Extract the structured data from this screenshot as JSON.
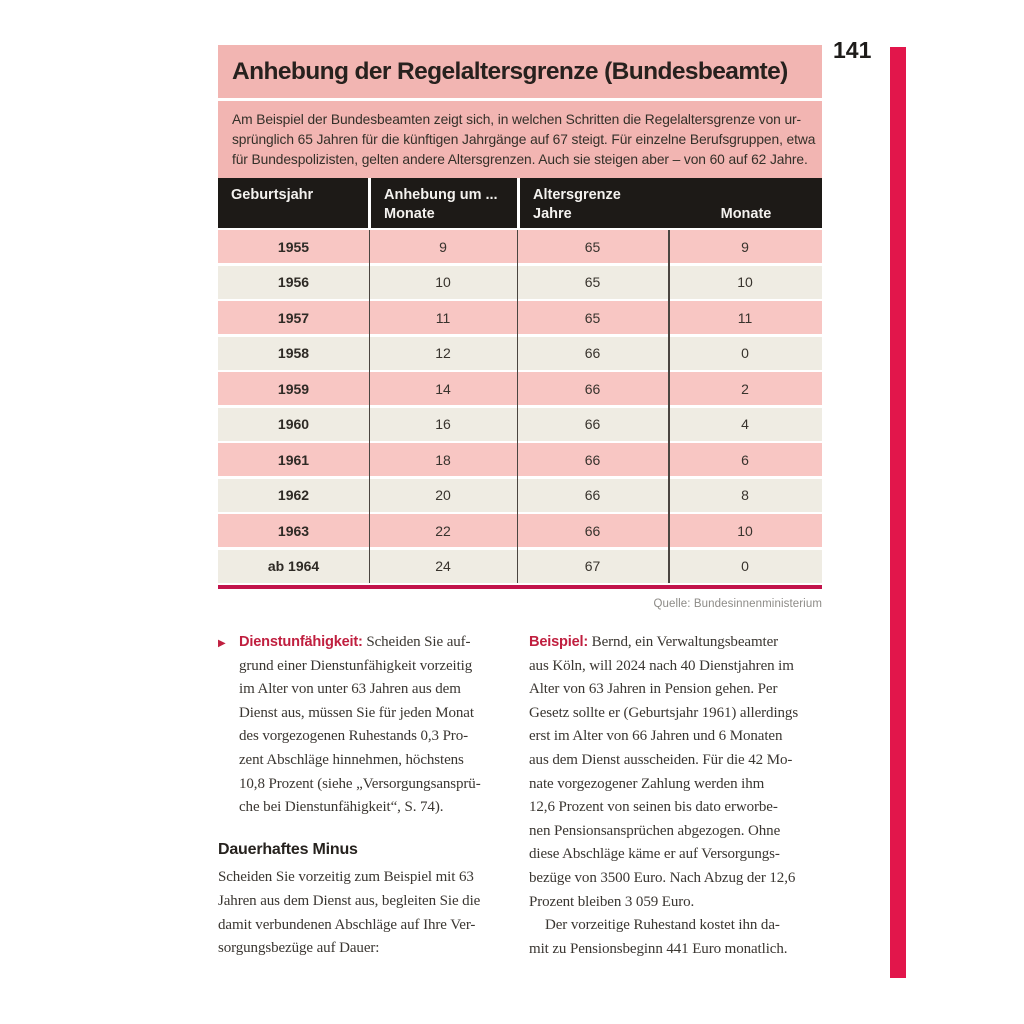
{
  "page_number": "141",
  "icons": {
    "bullet": "▶"
  },
  "colors": {
    "accent_crimson": "#e2164b",
    "box_pink": "#f2b5b2",
    "row_pink": "#f8c6c3",
    "row_beige": "#efece3",
    "header_black": "#1d1a17",
    "lead_red": "#c01f3f"
  },
  "infobox": {
    "title": "Anhebung der Regelaltersgrenze (Bundesbeamte)",
    "intro_lines": [
      "Am Beispiel der Bundesbeamten zeigt sich, in welchen Schritten die Regelaltersgrenze von ur-",
      "sprünglich 65 Jahren für die künftigen Jahrgänge auf 67 steigt. Für einzelne Berufsgruppen, etwa",
      "für Bundespolizisten, gelten andere Altersgrenzen. Auch sie steigen aber – von 60 auf 62 Jahre."
    ]
  },
  "table": {
    "headers": {
      "col1": "Geburtsjahr",
      "col2_line1": "Anhebung um ...",
      "col2_line2": "Monate",
      "col3_line1": "Altersgrenze",
      "col3_sub_jahre": "Jahre",
      "col3_sub_monate": "Monate"
    },
    "rows": [
      {
        "geburtsjahr": "1955",
        "anhebung": "9",
        "jahre": "65",
        "monate": "9"
      },
      {
        "geburtsjahr": "1956",
        "anhebung": "10",
        "jahre": "65",
        "monate": "10"
      },
      {
        "geburtsjahr": "1957",
        "anhebung": "11",
        "jahre": "65",
        "monate": "11"
      },
      {
        "geburtsjahr": "1958",
        "anhebung": "12",
        "jahre": "66",
        "monate": "0"
      },
      {
        "geburtsjahr": "1959",
        "anhebung": "14",
        "jahre": "66",
        "monate": "2"
      },
      {
        "geburtsjahr": "1960",
        "anhebung": "16",
        "jahre": "66",
        "monate": "4"
      },
      {
        "geburtsjahr": "1961",
        "anhebung": "18",
        "jahre": "66",
        "monate": "6"
      },
      {
        "geburtsjahr": "1962",
        "anhebung": "20",
        "jahre": "66",
        "monate": "8"
      },
      {
        "geburtsjahr": "1963",
        "anhebung": "22",
        "jahre": "66",
        "monate": "10"
      },
      {
        "geburtsjahr": "ab 1964",
        "anhebung": "24",
        "jahre": "67",
        "monate": "0"
      }
    ],
    "source": "Quelle: Bundesinnenministerium"
  },
  "body": {
    "left": {
      "bullet_lead": "Dienstunfähigkeit:",
      "bullet_lines": [
        " Scheiden Sie auf-",
        "grund einer Dienstunfähigkeit vorzeitig",
        "im Alter von unter 63 Jahren aus dem",
        "Dienst aus, müssen Sie für jeden Monat",
        "des vorgezogenen Ruhestands 0,3 Pro-",
        "zent Abschläge hinnehmen, höchstens",
        "10,8 Prozent (siehe „Versorgungsansprü-",
        "che bei Dienstunfähigkeit“, S. 74)."
      ],
      "subheading": "Dauerhaftes Minus",
      "para_lines": [
        "Scheiden Sie vorzeitig zum Beispiel mit 63",
        "Jahren aus dem Dienst aus, begleiten Sie die",
        "damit verbundenen Abschläge auf Ihre Ver-",
        "sorgungsbezüge auf Dauer:"
      ]
    },
    "right": {
      "lead": "Beispiel:",
      "para1_lines": [
        " Bernd, ein Verwaltungsbeamter",
        "aus Köln, will 2024 nach 40 Dienstjahren im",
        "Alter von 63 Jahren in Pension gehen. Per",
        "Gesetz sollte er (Geburtsjahr 1961) allerdings",
        "erst im Alter von 66 Jahren und 6 Monaten",
        "aus dem Dienst ausscheiden. Für die 42 Mo-",
        "nate vorgezogener Zahlung werden ihm",
        "12,6 Prozent von seinen bis dato erworbe-",
        "nen Pensionsansprüchen abgezogen. Ohne",
        "diese Abschläge käme er auf Versorgungs-",
        "bezüge von 3500 Euro. Nach Abzug der 12,6",
        "Prozent bleiben 3 059 Euro."
      ],
      "para2_lines": [
        "Der vorzeitige Ruhestand kostet ihn da-",
        "mit zu Pensionsbeginn 441 Euro monatlich."
      ]
    }
  }
}
